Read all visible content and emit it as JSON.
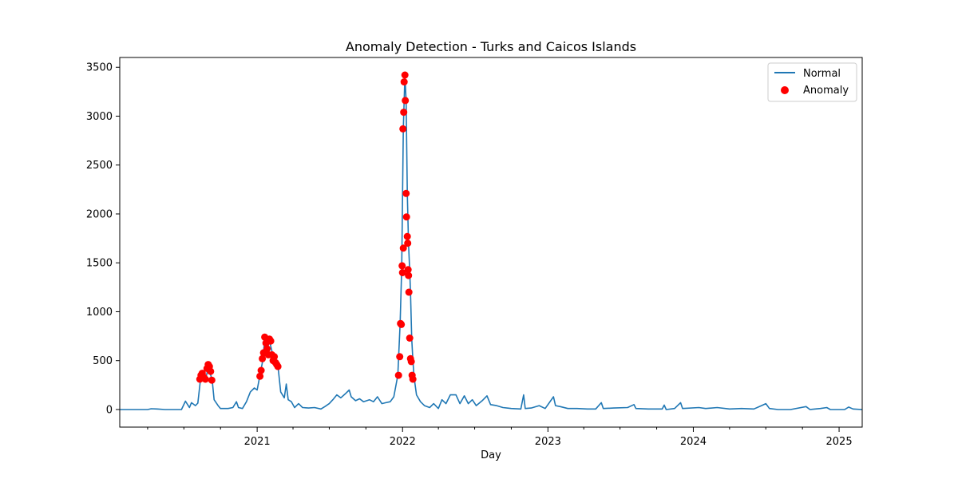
{
  "chart_data": {
    "type": "line",
    "title": "Anomaly Detection - Turks and Caicos Islands",
    "xlabel": "Day",
    "ylabel": "",
    "xlim": [
      "2020-01-22",
      "2025-02-28"
    ],
    "ylim": [
      -180,
      3600
    ],
    "yticks": [
      0,
      500,
      1000,
      1500,
      2000,
      2500,
      3000,
      3500
    ],
    "xticks": [
      {
        "label": "2021",
        "date": "2021-01-01"
      },
      {
        "label": "2022",
        "date": "2022-01-01"
      },
      {
        "label": "2023",
        "date": "2023-01-01"
      },
      {
        "label": "2024",
        "date": "2024-01-01"
      },
      {
        "label": "2025",
        "date": "2025-01-01"
      }
    ],
    "legend": {
      "position": "top-right",
      "entries": [
        "Normal",
        "Anomaly"
      ]
    },
    "colors": {
      "normal": "#1f77b4",
      "anomaly": "#ff0000"
    },
    "series": [
      {
        "name": "Normal",
        "points": [
          [
            "2020-01-22",
            0
          ],
          [
            "2020-04-01",
            0
          ],
          [
            "2020-04-10",
            8
          ],
          [
            "2020-04-25",
            5
          ],
          [
            "2020-05-15",
            0
          ],
          [
            "2020-06-25",
            0
          ],
          [
            "2020-07-05",
            85
          ],
          [
            "2020-07-15",
            20
          ],
          [
            "2020-07-20",
            70
          ],
          [
            "2020-07-30",
            40
          ],
          [
            "2020-08-05",
            65
          ],
          [
            "2020-08-12",
            320
          ],
          [
            "2020-08-18",
            370
          ],
          [
            "2020-08-25",
            300
          ],
          [
            "2020-08-31",
            450
          ],
          [
            "2020-09-05",
            370
          ],
          [
            "2020-09-10",
            300
          ],
          [
            "2020-09-15",
            100
          ],
          [
            "2020-09-25",
            40
          ],
          [
            "2020-10-01",
            10
          ],
          [
            "2020-10-20",
            10
          ],
          [
            "2020-11-01",
            20
          ],
          [
            "2020-11-10",
            80
          ],
          [
            "2020-11-15",
            20
          ],
          [
            "2020-11-25",
            10
          ],
          [
            "2020-12-05",
            80
          ],
          [
            "2020-12-15",
            180
          ],
          [
            "2020-12-25",
            220
          ],
          [
            "2021-01-01",
            200
          ],
          [
            "2021-01-08",
            350
          ],
          [
            "2021-01-15",
            500
          ],
          [
            "2021-01-20",
            720
          ],
          [
            "2021-01-25",
            600
          ],
          [
            "2021-02-01",
            700
          ],
          [
            "2021-02-08",
            580
          ],
          [
            "2021-02-15",
            520
          ],
          [
            "2021-02-22",
            450
          ],
          [
            "2021-03-01",
            180
          ],
          [
            "2021-03-10",
            120
          ],
          [
            "2021-03-15",
            260
          ],
          [
            "2021-03-20",
            100
          ],
          [
            "2021-03-28",
            80
          ],
          [
            "2021-04-05",
            20
          ],
          [
            "2021-04-15",
            60
          ],
          [
            "2021-04-25",
            20
          ],
          [
            "2021-05-10",
            15
          ],
          [
            "2021-05-25",
            20
          ],
          [
            "2021-06-10",
            5
          ],
          [
            "2021-06-20",
            30
          ],
          [
            "2021-07-01",
            60
          ],
          [
            "2021-07-10",
            100
          ],
          [
            "2021-07-20",
            150
          ],
          [
            "2021-07-30",
            120
          ],
          [
            "2021-08-10",
            160
          ],
          [
            "2021-08-20",
            200
          ],
          [
            "2021-08-25",
            130
          ],
          [
            "2021-09-05",
            90
          ],
          [
            "2021-09-15",
            110
          ],
          [
            "2021-09-25",
            80
          ],
          [
            "2021-10-10",
            100
          ],
          [
            "2021-10-20",
            80
          ],
          [
            "2021-10-30",
            130
          ],
          [
            "2021-11-10",
            60
          ],
          [
            "2021-11-20",
            70
          ],
          [
            "2021-12-01",
            80
          ],
          [
            "2021-12-10",
            130
          ],
          [
            "2021-12-20",
            350
          ],
          [
            "2021-12-26",
            880
          ],
          [
            "2021-12-30",
            1450
          ],
          [
            "2022-01-03",
            2870
          ],
          [
            "2022-01-07",
            3420
          ],
          [
            "2022-01-10",
            3160
          ],
          [
            "2022-01-13",
            2210
          ],
          [
            "2022-01-16",
            1700
          ],
          [
            "2022-01-19",
            1420
          ],
          [
            "2022-01-21",
            1200
          ],
          [
            "2022-01-24",
            730
          ],
          [
            "2022-01-27",
            500
          ],
          [
            "2022-01-30",
            330
          ],
          [
            "2022-02-05",
            150
          ],
          [
            "2022-02-15",
            80
          ],
          [
            "2022-02-25",
            40
          ],
          [
            "2022-03-10",
            20
          ],
          [
            "2022-03-20",
            60
          ],
          [
            "2022-04-01",
            10
          ],
          [
            "2022-04-10",
            100
          ],
          [
            "2022-04-20",
            60
          ],
          [
            "2022-05-01",
            150
          ],
          [
            "2022-05-15",
            150
          ],
          [
            "2022-05-25",
            60
          ],
          [
            "2022-06-05",
            140
          ],
          [
            "2022-06-15",
            60
          ],
          [
            "2022-06-25",
            100
          ],
          [
            "2022-07-05",
            40
          ],
          [
            "2022-07-20",
            90
          ],
          [
            "2022-08-01",
            140
          ],
          [
            "2022-08-10",
            50
          ],
          [
            "2022-08-25",
            40
          ],
          [
            "2022-09-10",
            20
          ],
          [
            "2022-10-01",
            10
          ],
          [
            "2022-10-25",
            5
          ],
          [
            "2022-11-01",
            150
          ],
          [
            "2022-11-05",
            10
          ],
          [
            "2022-11-20",
            15
          ],
          [
            "2022-12-10",
            40
          ],
          [
            "2022-12-25",
            10
          ],
          [
            "2023-01-15",
            130
          ],
          [
            "2023-01-20",
            40
          ],
          [
            "2023-02-01",
            30
          ],
          [
            "2023-02-20",
            10
          ],
          [
            "2023-03-15",
            10
          ],
          [
            "2023-04-10",
            5
          ],
          [
            "2023-05-01",
            5
          ],
          [
            "2023-05-15",
            70
          ],
          [
            "2023-05-20",
            10
          ],
          [
            "2023-06-15",
            15
          ],
          [
            "2023-07-20",
            20
          ],
          [
            "2023-08-05",
            50
          ],
          [
            "2023-08-10",
            10
          ],
          [
            "2023-09-10",
            5
          ],
          [
            "2023-10-15",
            5
          ],
          [
            "2023-10-20",
            45
          ],
          [
            "2023-10-25",
            0
          ],
          [
            "2023-11-15",
            10
          ],
          [
            "2023-11-30",
            70
          ],
          [
            "2023-12-05",
            10
          ],
          [
            "2024-01-15",
            20
          ],
          [
            "2024-02-01",
            10
          ],
          [
            "2024-03-01",
            20
          ],
          [
            "2024-04-01",
            5
          ],
          [
            "2024-05-01",
            10
          ],
          [
            "2024-06-01",
            5
          ],
          [
            "2024-06-20",
            40
          ],
          [
            "2024-07-01",
            60
          ],
          [
            "2024-07-10",
            10
          ],
          [
            "2024-08-01",
            0
          ],
          [
            "2024-09-01",
            0
          ],
          [
            "2024-10-10",
            30
          ],
          [
            "2024-10-20",
            0
          ],
          [
            "2024-11-15",
            10
          ],
          [
            "2024-12-01",
            20
          ],
          [
            "2024-12-10",
            0
          ],
          [
            "2025-01-15",
            0
          ],
          [
            "2025-01-25",
            25
          ],
          [
            "2025-02-05",
            5
          ],
          [
            "2025-02-28",
            0
          ]
        ]
      },
      {
        "name": "Anomaly",
        "points": [
          [
            "2020-08-10",
            310
          ],
          [
            "2020-08-13",
            350
          ],
          [
            "2020-08-16",
            370
          ],
          [
            "2020-08-20",
            330
          ],
          [
            "2020-08-24",
            310
          ],
          [
            "2020-08-28",
            420
          ],
          [
            "2020-08-31",
            460
          ],
          [
            "2020-09-03",
            440
          ],
          [
            "2020-09-06",
            390
          ],
          [
            "2020-09-09",
            300
          ],
          [
            "2021-01-08",
            340
          ],
          [
            "2021-01-11",
            400
          ],
          [
            "2021-01-14",
            520
          ],
          [
            "2021-01-17",
            580
          ],
          [
            "2021-01-20",
            740
          ],
          [
            "2021-01-23",
            680
          ],
          [
            "2021-01-26",
            620
          ],
          [
            "2021-01-29",
            560
          ],
          [
            "2021-02-01",
            720
          ],
          [
            "2021-02-04",
            700
          ],
          [
            "2021-02-07",
            560
          ],
          [
            "2021-02-10",
            500
          ],
          [
            "2021-02-13",
            540
          ],
          [
            "2021-02-16",
            480
          ],
          [
            "2021-02-19",
            460
          ],
          [
            "2021-02-22",
            440
          ],
          [
            "2021-12-22",
            350
          ],
          [
            "2021-12-25",
            540
          ],
          [
            "2021-12-27",
            880
          ],
          [
            "2021-12-29",
            870
          ],
          [
            "2021-12-31",
            1470
          ],
          [
            "2022-01-01",
            1400
          ],
          [
            "2022-01-02",
            2870
          ],
          [
            "2022-01-03",
            1650
          ],
          [
            "2022-01-04",
            3040
          ],
          [
            "2022-01-05",
            3350
          ],
          [
            "2022-01-07",
            3420
          ],
          [
            "2022-01-08",
            3160
          ],
          [
            "2022-01-10",
            2210
          ],
          [
            "2022-01-11",
            1970
          ],
          [
            "2022-01-13",
            1770
          ],
          [
            "2022-01-14",
            1700
          ],
          [
            "2022-01-15",
            1430
          ],
          [
            "2022-01-16",
            1370
          ],
          [
            "2022-01-17",
            1200
          ],
          [
            "2022-01-19",
            730
          ],
          [
            "2022-01-21",
            520
          ],
          [
            "2022-01-23",
            490
          ],
          [
            "2022-01-25",
            350
          ],
          [
            "2022-01-27",
            310
          ]
        ]
      }
    ]
  }
}
